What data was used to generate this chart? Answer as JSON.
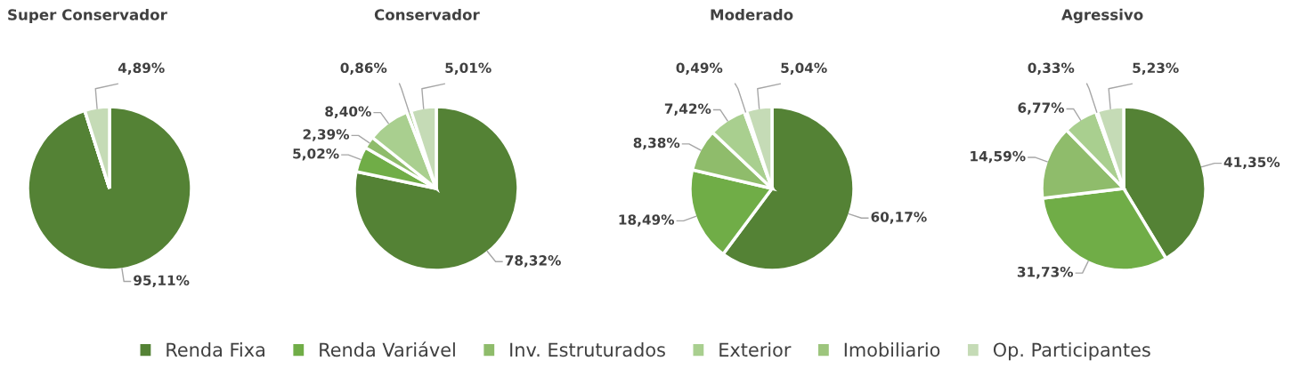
{
  "chart_data": [
    {
      "type": "pie",
      "title": "Super Conservador",
      "legend": "bottom",
      "categories": [
        "Renda Fixa",
        "Renda Variável",
        "Inv. Estruturados",
        "Exterior",
        "Imobiliario",
        "Op. Participantes"
      ],
      "values": [
        95.11,
        0,
        0,
        0,
        0,
        4.89
      ],
      "value_labels": [
        "95,11%",
        null,
        null,
        null,
        null,
        "4,89%"
      ],
      "colors": [
        "#548235",
        "#70ad47",
        "#8fbc6b",
        "#a9cf8f",
        "#9dc57d",
        "#c5dbb6"
      ]
    },
    {
      "type": "pie",
      "title": "Conservador",
      "values": [
        78.32,
        5.02,
        2.39,
        8.4,
        0.86,
        5.01
      ],
      "value_labels": [
        "78,32%",
        "5,02%",
        "2,39%",
        "8,40%",
        "0,86%",
        "5,01%"
      ],
      "colors": [
        "#548235",
        "#70ad47",
        "#8fbc6b",
        "#a9cf8f",
        "#9dc57d",
        "#c5dbb6"
      ]
    },
    {
      "type": "pie",
      "title": "Moderado",
      "values": [
        60.17,
        18.49,
        8.38,
        7.42,
        0.49,
        5.04
      ],
      "value_labels": [
        "60,17%",
        "18,49%",
        "8,38%",
        "7,42%",
        "0,49%",
        "5,04%"
      ],
      "colors": [
        "#548235",
        "#70ad47",
        "#8fbc6b",
        "#a9cf8f",
        "#9dc57d",
        "#c5dbb6"
      ]
    },
    {
      "type": "pie",
      "title": "Agressivo",
      "values": [
        41.35,
        31.73,
        14.59,
        6.77,
        0.33,
        5.23
      ],
      "value_labels": [
        "41,35%",
        "31,73%",
        "14,59%",
        "6,77%",
        "0,33%",
        "5,23%"
      ],
      "colors": [
        "#548235",
        "#70ad47",
        "#8fbc6b",
        "#a9cf8f",
        "#9dc57d",
        "#c5dbb6"
      ]
    }
  ]
}
